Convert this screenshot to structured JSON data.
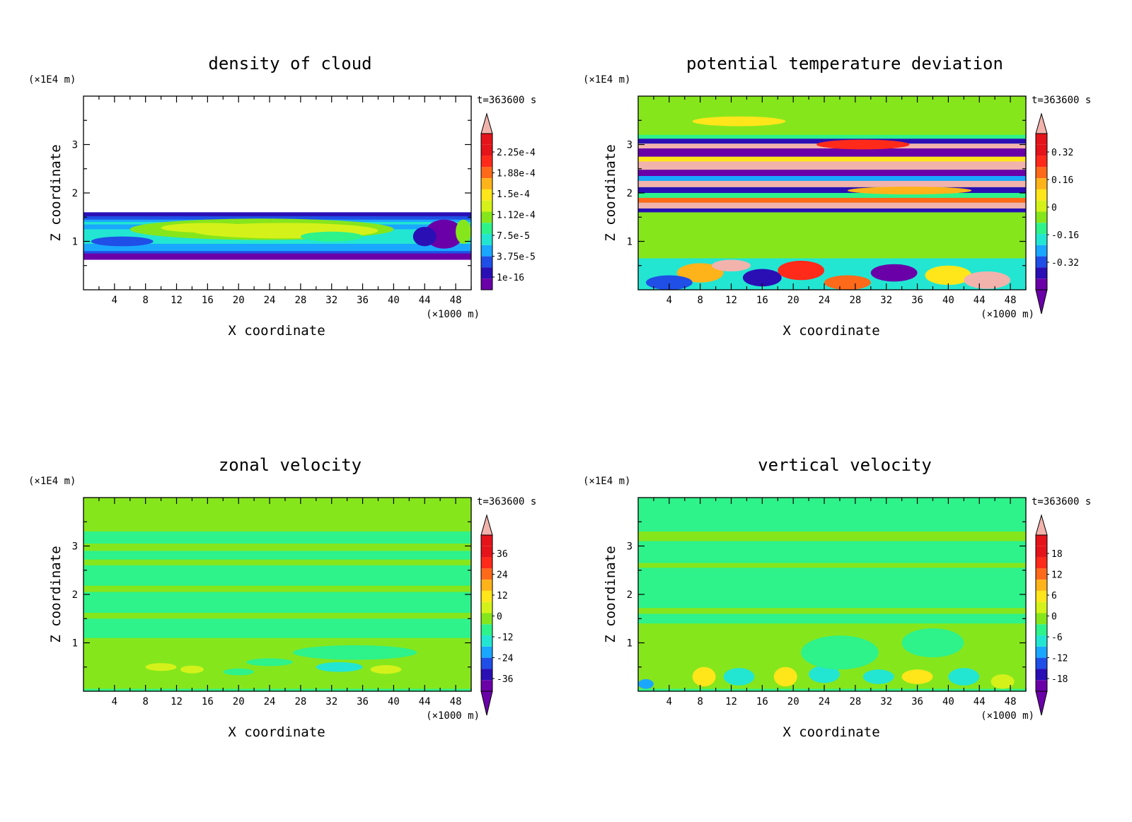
{
  "palette": [
    "#6a00a8",
    "#2a0fb5",
    "#1f4fe6",
    "#1aa7ff",
    "#22e6d2",
    "#2ef28a",
    "#86e61c",
    "#d4f21a",
    "#ffe61a",
    "#ffb31a",
    "#ff6a1a",
    "#ff2a1a",
    "#e4141a",
    "#f2b3ad"
  ],
  "chart_data": [
    {
      "type": "heatmap",
      "title": "density of cloud",
      "xlabel": "X coordinate",
      "ylabel": "Z coordinate",
      "x_unit": "(×1000 m)",
      "y_unit": "(×1E4 m)",
      "time_label": "t=363600 s",
      "xlim": [
        0,
        50
      ],
      "ylim": [
        0,
        4
      ],
      "x_ticks": [
        "4",
        "8",
        "12",
        "16",
        "20",
        "24",
        "28",
        "32",
        "36",
        "40",
        "44",
        "48"
      ],
      "y_ticks": [
        "1",
        "2",
        "3"
      ],
      "colorbar_labels": [
        "2.25e-4",
        "1.88e-4",
        "1.5e-4",
        "1.12e-4",
        "7.5e-5",
        "3.75e-5",
        "1e-16"
      ],
      "background_color": "#ffffff",
      "bands": [
        {
          "z0": 0.62,
          "z1": 1.6,
          "level": 2
        },
        {
          "z0": 0.62,
          "z1": 0.75,
          "level": 0
        },
        {
          "z0": 1.52,
          "z1": 1.6,
          "level": 1
        },
        {
          "z0": 0.8,
          "z1": 1.45,
          "level": 3
        },
        {
          "z0": 0.95,
          "z1": 1.4,
          "level": 4
        },
        {
          "z0": 1.25,
          "z1": 1.35,
          "level": 3
        }
      ],
      "blobs": [
        {
          "x": 23,
          "z": 1.25,
          "rx": 17,
          "rz": 0.22,
          "level": 6
        },
        {
          "x": 26,
          "z": 1.22,
          "rx": 12,
          "rz": 0.16,
          "level": 7
        },
        {
          "x": 16,
          "z": 1.28,
          "rx": 6,
          "rz": 0.1,
          "level": 7
        },
        {
          "x": 32,
          "z": 1.1,
          "rx": 4,
          "rz": 0.1,
          "level": 5
        },
        {
          "x": 46.5,
          "z": 1.15,
          "rx": 2.5,
          "rz": 0.3,
          "level": 0
        },
        {
          "x": 44,
          "z": 1.1,
          "rx": 1.5,
          "rz": 0.2,
          "level": 1
        },
        {
          "x": 49,
          "z": 1.2,
          "rx": 1,
          "rz": 0.25,
          "level": 6
        },
        {
          "x": 5,
          "z": 1.0,
          "rx": 4,
          "rz": 0.1,
          "level": 2
        }
      ]
    },
    {
      "type": "heatmap",
      "title": "potential temperature deviation",
      "xlabel": "X coordinate",
      "ylabel": "Z coordinate",
      "x_unit": "(×1000 m)",
      "y_unit": "(×1E4 m)",
      "time_label": "t=363600 s",
      "xlim": [
        0,
        50
      ],
      "ylim": [
        0,
        4
      ],
      "x_ticks": [
        "4",
        "8",
        "12",
        "16",
        "20",
        "24",
        "28",
        "32",
        "36",
        "40",
        "44",
        "48"
      ],
      "y_ticks": [
        "1",
        "2",
        "3"
      ],
      "colorbar_labels": [
        "0.32",
        "0.16",
        "0",
        "-0.16",
        "-0.32"
      ],
      "background_color": "#2ef28a",
      "bands": [
        {
          "z0": 0.65,
          "z1": 1.6,
          "level": 6
        },
        {
          "z0": 3.2,
          "z1": 4.0,
          "level": 6
        },
        {
          "z0": 1.6,
          "z1": 1.68,
          "level": 1
        },
        {
          "z0": 1.68,
          "z1": 1.8,
          "level": 13
        },
        {
          "z0": 1.8,
          "z1": 1.9,
          "level": 10
        },
        {
          "z0": 1.9,
          "z1": 2.0,
          "level": 5
        },
        {
          "z0": 2.0,
          "z1": 2.12,
          "level": 1
        },
        {
          "z0": 2.12,
          "z1": 2.25,
          "level": 13
        },
        {
          "z0": 2.25,
          "z1": 2.35,
          "level": 3
        },
        {
          "z0": 2.35,
          "z1": 2.48,
          "level": 0
        },
        {
          "z0": 2.48,
          "z1": 2.65,
          "level": 13
        },
        {
          "z0": 2.65,
          "z1": 2.75,
          "level": 8
        },
        {
          "z0": 2.75,
          "z1": 2.92,
          "level": 0
        },
        {
          "z0": 2.92,
          "z1": 3.02,
          "level": 13
        },
        {
          "z0": 3.02,
          "z1": 3.12,
          "level": 1
        },
        {
          "z0": 0.0,
          "z1": 0.65,
          "level": 4
        }
      ],
      "blobs": [
        {
          "x": 13,
          "z": 3.48,
          "rx": 6,
          "rz": 0.1,
          "level": 8
        },
        {
          "x": 29,
          "z": 3.0,
          "rx": 6,
          "rz": 0.1,
          "level": 11
        },
        {
          "x": 35,
          "z": 2.05,
          "rx": 8,
          "rz": 0.08,
          "level": 9
        },
        {
          "x": 8,
          "z": 0.35,
          "rx": 3,
          "rz": 0.2,
          "level": 9
        },
        {
          "x": 16,
          "z": 0.25,
          "rx": 2.5,
          "rz": 0.18,
          "level": 1
        },
        {
          "x": 21,
          "z": 0.4,
          "rx": 3,
          "rz": 0.2,
          "level": 11
        },
        {
          "x": 27,
          "z": 0.15,
          "rx": 3,
          "rz": 0.15,
          "level": 10
        },
        {
          "x": 33,
          "z": 0.35,
          "rx": 3,
          "rz": 0.18,
          "level": 0
        },
        {
          "x": 40,
          "z": 0.3,
          "rx": 3,
          "rz": 0.2,
          "level": 8
        },
        {
          "x": 45,
          "z": 0.2,
          "rx": 3,
          "rz": 0.18,
          "level": 13
        },
        {
          "x": 4,
          "z": 0.15,
          "rx": 3,
          "rz": 0.15,
          "level": 2
        },
        {
          "x": 12,
          "z": 0.5,
          "rx": 2.5,
          "rz": 0.12,
          "level": 13
        }
      ]
    },
    {
      "type": "heatmap",
      "title": "zonal velocity",
      "xlabel": "X coordinate",
      "ylabel": "Z coordinate",
      "x_unit": "(×1000 m)",
      "y_unit": "(×1E4 m)",
      "time_label": "t=363600 s",
      "xlim": [
        0,
        50
      ],
      "ylim": [
        0,
        4
      ],
      "x_ticks": [
        "4",
        "8",
        "12",
        "16",
        "20",
        "24",
        "28",
        "32",
        "36",
        "40",
        "44",
        "48"
      ],
      "y_ticks": [
        "1",
        "2",
        "3"
      ],
      "colorbar_labels": [
        "36",
        "24",
        "12",
        "0",
        "-12",
        "-24",
        "-36"
      ],
      "background_color": "#2ef28a",
      "bands": [
        {
          "z0": 3.3,
          "z1": 4.0,
          "level": 6
        },
        {
          "z0": 2.9,
          "z1": 3.05,
          "level": 6
        },
        {
          "z0": 2.6,
          "z1": 2.72,
          "level": 6
        },
        {
          "z0": 2.05,
          "z1": 2.18,
          "level": 6
        },
        {
          "z0": 1.5,
          "z1": 1.62,
          "level": 6
        },
        {
          "z0": 0.05,
          "z1": 1.1,
          "level": 6
        }
      ],
      "blobs": [
        {
          "x": 10,
          "z": 0.5,
          "rx": 2,
          "rz": 0.08,
          "level": 7
        },
        {
          "x": 14,
          "z": 0.45,
          "rx": 1.5,
          "rz": 0.08,
          "level": 7
        },
        {
          "x": 20,
          "z": 0.4,
          "rx": 2,
          "rz": 0.07,
          "level": 5
        },
        {
          "x": 33,
          "z": 0.5,
          "rx": 3,
          "rz": 0.1,
          "level": 4
        },
        {
          "x": 39,
          "z": 0.45,
          "rx": 2,
          "rz": 0.09,
          "level": 7
        },
        {
          "x": 24,
          "z": 0.6,
          "rx": 3,
          "rz": 0.08,
          "level": 5
        },
        {
          "x": 35,
          "z": 0.8,
          "rx": 8,
          "rz": 0.15,
          "level": 5
        }
      ]
    },
    {
      "type": "heatmap",
      "title": "vertical velocity",
      "xlabel": "X coordinate",
      "ylabel": "Z coordinate",
      "x_unit": "(×1000 m)",
      "y_unit": "(×1E4 m)",
      "time_label": "t=363600 s",
      "xlim": [
        0,
        50
      ],
      "ylim": [
        0,
        4
      ],
      "x_ticks": [
        "4",
        "8",
        "12",
        "16",
        "20",
        "24",
        "28",
        "32",
        "36",
        "40",
        "44",
        "48"
      ],
      "y_ticks": [
        "1",
        "2",
        "3"
      ],
      "colorbar_labels": [
        "18",
        "12",
        "6",
        "0",
        "-6",
        "-12",
        "-18"
      ],
      "background_color": "#2ef28a",
      "bands": [
        {
          "z0": 3.1,
          "z1": 3.3,
          "level": 6
        },
        {
          "z0": 2.55,
          "z1": 2.65,
          "level": 6
        },
        {
          "z0": 1.6,
          "z1": 1.72,
          "level": 6
        },
        {
          "z0": 0.05,
          "z1": 1.4,
          "level": 6
        }
      ],
      "blobs": [
        {
          "x": 8.5,
          "z": 0.3,
          "rx": 1.5,
          "rz": 0.2,
          "level": 8
        },
        {
          "x": 19,
          "z": 0.3,
          "rx": 1.5,
          "rz": 0.2,
          "level": 8
        },
        {
          "x": 36,
          "z": 0.3,
          "rx": 2,
          "rz": 0.15,
          "level": 8
        },
        {
          "x": 47,
          "z": 0.2,
          "rx": 1.5,
          "rz": 0.15,
          "level": 7
        },
        {
          "x": 1,
          "z": 0.15,
          "rx": 1,
          "rz": 0.1,
          "level": 3
        },
        {
          "x": 13,
          "z": 0.3,
          "rx": 2,
          "rz": 0.18,
          "level": 4
        },
        {
          "x": 24,
          "z": 0.35,
          "rx": 2,
          "rz": 0.18,
          "level": 4
        },
        {
          "x": 31,
          "z": 0.3,
          "rx": 2,
          "rz": 0.15,
          "level": 4
        },
        {
          "x": 42,
          "z": 0.3,
          "rx": 2,
          "rz": 0.18,
          "level": 4
        },
        {
          "x": 26,
          "z": 0.8,
          "rx": 5,
          "rz": 0.35,
          "level": 5
        },
        {
          "x": 38,
          "z": 1.0,
          "rx": 4,
          "rz": 0.3,
          "level": 5
        }
      ]
    }
  ]
}
